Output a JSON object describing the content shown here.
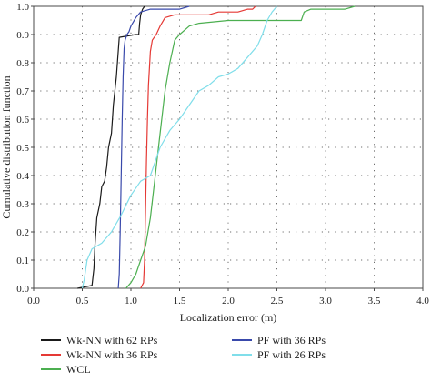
{
  "chart_data": {
    "type": "line",
    "xlabel": "Localization error (m)",
    "ylabel": "Cumulative distribution function",
    "xlim": [
      0,
      4
    ],
    "ylim": [
      0,
      1
    ],
    "x_ticks": [
      "0.0",
      "0.5",
      "1.0",
      "1.5",
      "2.0",
      "2.5",
      "3.0",
      "3.5",
      "4.0"
    ],
    "y_ticks": [
      "0.0",
      "0.1",
      "0.2",
      "0.3",
      "0.4",
      "0.5",
      "0.6",
      "0.7",
      "0.8",
      "0.9",
      "1.0"
    ],
    "grid": true,
    "legend_position": "bottom",
    "series": [
      {
        "name": "Wk-NN with 62 RPs",
        "color": "#1a1a1a",
        "x": [
          0.45,
          0.6,
          0.62,
          0.63,
          0.65,
          0.68,
          0.7,
          0.73,
          0.75,
          0.77,
          0.8,
          0.82,
          0.85,
          0.88,
          1.05,
          1.08,
          1.09,
          1.1,
          1.12,
          1.14
        ],
        "y": [
          0.0,
          0.01,
          0.07,
          0.15,
          0.25,
          0.3,
          0.36,
          0.38,
          0.43,
          0.5,
          0.55,
          0.65,
          0.75,
          0.89,
          0.9,
          0.9,
          0.94,
          0.97,
          0.99,
          1.0
        ]
      },
      {
        "name": "Wk-NN with 36 RPs",
        "color": "#e53935",
        "x": [
          1.1,
          1.13,
          1.14,
          1.15,
          1.16,
          1.17,
          1.18,
          1.2,
          1.22,
          1.26,
          1.3,
          1.35,
          1.45,
          1.6,
          1.8,
          1.9,
          2.0,
          2.1,
          2.2,
          2.25,
          2.28
        ],
        "y": [
          0.0,
          0.02,
          0.1,
          0.28,
          0.45,
          0.6,
          0.72,
          0.84,
          0.88,
          0.9,
          0.93,
          0.96,
          0.97,
          0.97,
          0.97,
          0.98,
          0.98,
          0.98,
          0.99,
          0.99,
          1.0
        ]
      },
      {
        "name": "WCL",
        "color": "#4caf50",
        "x": [
          0.95,
          1.0,
          1.05,
          1.1,
          1.15,
          1.2,
          1.25,
          1.3,
          1.35,
          1.4,
          1.45,
          1.5,
          1.6,
          1.7,
          2.0,
          2.4,
          2.75,
          2.78,
          2.85,
          3.0,
          3.2,
          3.3
        ],
        "y": [
          0.0,
          0.02,
          0.05,
          0.1,
          0.15,
          0.25,
          0.4,
          0.55,
          0.7,
          0.8,
          0.88,
          0.9,
          0.93,
          0.94,
          0.95,
          0.95,
          0.95,
          0.98,
          0.99,
          0.99,
          0.99,
          1.0
        ]
      },
      {
        "name": "PF with 36 RPs",
        "color": "#3949ab",
        "x": [
          0.87,
          0.88,
          0.89,
          0.9,
          0.91,
          0.92,
          0.93,
          0.94,
          0.96,
          0.98,
          1.0,
          1.05,
          1.1,
          1.2,
          1.3,
          1.4,
          1.5,
          1.6
        ],
        "y": [
          0.0,
          0.05,
          0.2,
          0.4,
          0.6,
          0.75,
          0.85,
          0.88,
          0.9,
          0.91,
          0.93,
          0.96,
          0.98,
          0.99,
          0.99,
          0.99,
          0.99,
          1.0
        ]
      },
      {
        "name": "PF with 26 RPs",
        "color": "#80deea",
        "x": [
          0.5,
          0.52,
          0.55,
          0.6,
          0.7,
          0.8,
          0.9,
          1.0,
          1.1,
          1.2,
          1.3,
          1.4,
          1.5,
          1.6,
          1.7,
          1.8,
          1.9,
          2.0,
          2.1,
          2.2,
          2.3,
          2.35,
          2.4,
          2.45,
          2.5
        ],
        "y": [
          0.0,
          0.03,
          0.1,
          0.14,
          0.16,
          0.2,
          0.26,
          0.33,
          0.38,
          0.4,
          0.5,
          0.56,
          0.6,
          0.65,
          0.7,
          0.72,
          0.75,
          0.76,
          0.78,
          0.82,
          0.86,
          0.9,
          0.95,
          0.98,
          1.0
        ]
      }
    ]
  }
}
